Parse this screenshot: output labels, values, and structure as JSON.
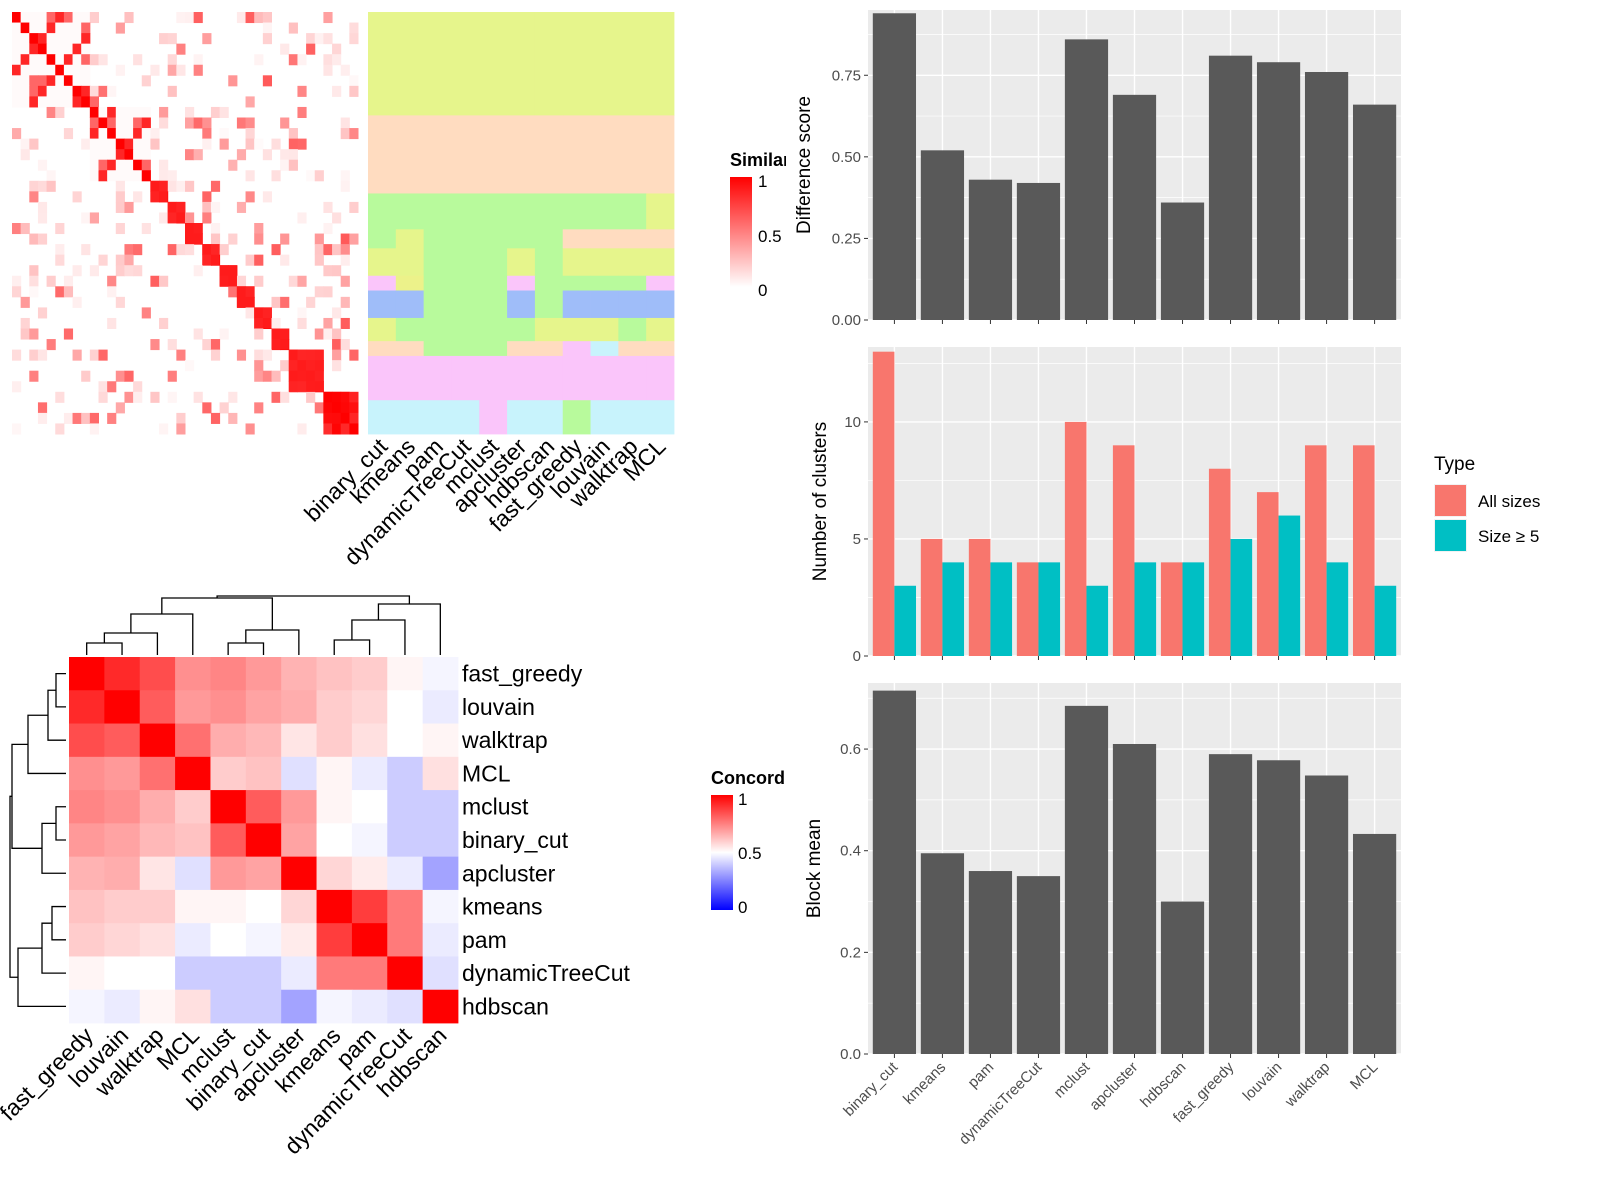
{
  "chart_data": [
    {
      "type": "heatmap",
      "name_hint": "similarity matrix with cluster assignment annotation",
      "legend_title": "Similar",
      "legend_ticks": [
        "1",
        "0.5",
        "0"
      ],
      "colors": {
        "high": "#ff0000",
        "low": "#ffffff"
      },
      "annotation_columns": [
        "binary_cut",
        "kmeans",
        "pam",
        "dynamicTreeCut",
        "mclust",
        "apcluster",
        "hdbscan",
        "fast_greedy",
        "louvain",
        "walktrap",
        "MCL"
      ],
      "annotation_palette": [
        "#e6f58c",
        "#ffdcc0",
        "#b8fa9c",
        "#fac5fa",
        "#c8f3fc",
        "#9fbdf9",
        "#f5a8d8",
        "#ecf28a"
      ],
      "block_sizes": [
        9,
        7,
        2,
        2,
        2,
        2,
        2,
        2,
        2,
        2,
        4,
        3
      ]
    },
    {
      "type": "heatmap",
      "name_hint": "concordance heatmap with dendrogram",
      "legend_title": "Concord",
      "legend_ticks": [
        "1",
        "0.5",
        "0"
      ],
      "colors": {
        "high": "#ff0000",
        "mid": "#ffffff",
        "low": "#0000ff"
      },
      "rows": [
        "fast_greedy",
        "louvain",
        "walktrap",
        "MCL",
        "mclust",
        "binary_cut",
        "apcluster",
        "kmeans",
        "pam",
        "dynamicTreeCut",
        "hdbscan"
      ],
      "columns": [
        "fast_greedy",
        "louvain",
        "walktrap",
        "MCL",
        "mclust",
        "binary_cut",
        "apcluster",
        "kmeans",
        "pam",
        "dynamicTreeCut",
        "hdbscan"
      ],
      "values": [
        [
          1.0,
          0.92,
          0.85,
          0.72,
          0.74,
          0.7,
          0.65,
          0.62,
          0.6,
          0.52,
          0.48
        ],
        [
          0.92,
          1.0,
          0.82,
          0.7,
          0.72,
          0.68,
          0.66,
          0.6,
          0.58,
          0.5,
          0.46
        ],
        [
          0.85,
          0.82,
          1.0,
          0.78,
          0.66,
          0.64,
          0.55,
          0.6,
          0.56,
          0.5,
          0.52
        ],
        [
          0.72,
          0.7,
          0.78,
          1.0,
          0.6,
          0.62,
          0.44,
          0.52,
          0.46,
          0.4,
          0.56
        ],
        [
          0.74,
          0.72,
          0.66,
          0.6,
          1.0,
          0.82,
          0.7,
          0.52,
          0.5,
          0.4,
          0.4
        ],
        [
          0.7,
          0.68,
          0.64,
          0.62,
          0.82,
          1.0,
          0.68,
          0.5,
          0.48,
          0.4,
          0.4
        ],
        [
          0.65,
          0.66,
          0.55,
          0.44,
          0.7,
          0.68,
          1.0,
          0.58,
          0.54,
          0.46,
          0.32
        ],
        [
          0.62,
          0.6,
          0.6,
          0.52,
          0.52,
          0.5,
          0.58,
          1.0,
          0.88,
          0.76,
          0.48
        ],
        [
          0.6,
          0.58,
          0.56,
          0.46,
          0.5,
          0.48,
          0.54,
          0.88,
          1.0,
          0.76,
          0.46
        ],
        [
          0.52,
          0.5,
          0.5,
          0.4,
          0.4,
          0.4,
          0.46,
          0.76,
          0.76,
          1.0,
          0.44
        ],
        [
          0.48,
          0.46,
          0.52,
          0.56,
          0.4,
          0.4,
          0.32,
          0.48,
          0.46,
          0.44,
          1.0
        ]
      ]
    },
    {
      "type": "bar",
      "categories": [
        "binary_cut",
        "kmeans",
        "pam",
        "dynamicTreeCut",
        "mclust",
        "apcluster",
        "hdbscan",
        "fast_greedy",
        "louvain",
        "walktrap",
        "MCL"
      ],
      "values": [
        0.94,
        0.52,
        0.43,
        0.42,
        0.86,
        0.69,
        0.36,
        0.81,
        0.79,
        0.76,
        0.66
      ],
      "ylabel": "Difference score",
      "ylim": [
        0,
        0.95
      ],
      "yticks": [
        "0.00",
        "0.25",
        "0.50",
        "0.75"
      ],
      "yticks_values": [
        0,
        0.25,
        0.5,
        0.75
      ],
      "bar_color": "#595959",
      "panel_color": "#ebebeb"
    },
    {
      "type": "bar",
      "categories": [
        "binary_cut",
        "kmeans",
        "pam",
        "dynamicTreeCut",
        "mclust",
        "apcluster",
        "hdbscan",
        "fast_greedy",
        "louvain",
        "walktrap",
        "MCL"
      ],
      "series": [
        {
          "name": "All sizes",
          "values": [
            13,
            5,
            5,
            4,
            10,
            9,
            4,
            8,
            7,
            9,
            9
          ],
          "color": "#f8766d"
        },
        {
          "name": "Size ≥ 5",
          "values": [
            3,
            4,
            4,
            4,
            3,
            4,
            4,
            5,
            6,
            4,
            3
          ],
          "color": "#00bfc4"
        }
      ],
      "ylabel": "Number of clusters",
      "ylim": [
        0,
        13.2
      ],
      "yticks": [
        "0",
        "5",
        "10"
      ],
      "yticks_values": [
        0,
        5,
        10
      ],
      "legend_title": "Type",
      "legend_position": "right",
      "panel_color": "#ebebeb"
    },
    {
      "type": "bar",
      "categories": [
        "binary_cut",
        "kmeans",
        "pam",
        "dynamicTreeCut",
        "mclust",
        "apcluster",
        "hdbscan",
        "fast_greedy",
        "louvain",
        "walktrap",
        "MCL"
      ],
      "values": [
        0.715,
        0.395,
        0.36,
        0.35,
        0.685,
        0.61,
        0.3,
        0.59,
        0.578,
        0.548,
        0.433
      ],
      "ylabel": "Block mean",
      "ylim": [
        0,
        0.73
      ],
      "yticks": [
        "0.0",
        "0.2",
        "0.4",
        "0.6"
      ],
      "yticks_values": [
        0,
        0.2,
        0.4,
        0.6
      ],
      "bar_color": "#595959",
      "panel_color": "#ebebeb"
    }
  ]
}
